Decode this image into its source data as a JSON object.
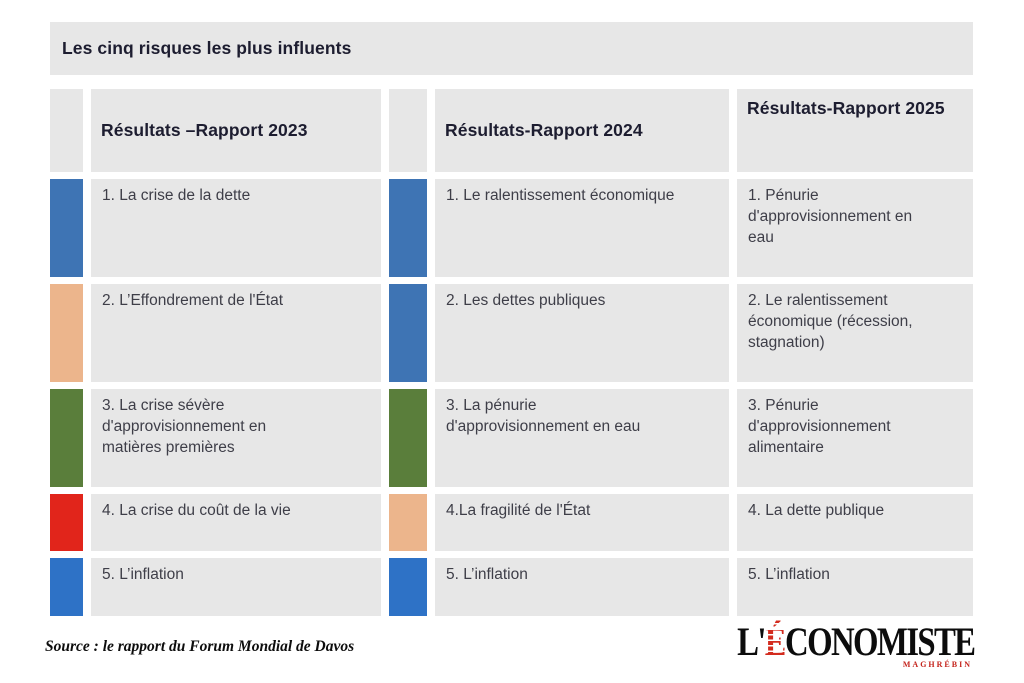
{
  "title": "Les cinq risques les plus influents",
  "colors": {
    "blue": "#3E74B4",
    "bright_blue": "#2E72C6",
    "tan": "#ECB58C",
    "green": "#5A7E3B",
    "red": "#E1251B",
    "cell_bg": "#E7E7E7"
  },
  "chart_data": {
    "type": "table",
    "title": "Les cinq risques les plus influents",
    "columns": [
      {
        "header": "Résultats –Rapport 2023",
        "has_swatches": true,
        "items": [
          {
            "text": "1. La crise de la dette",
            "color": "blue"
          },
          {
            "text": "2. L’Effondrement de l'État",
            "color": "tan"
          },
          {
            "text": "3. La crise sévère\nd'approvisionnement en\nmatières premières",
            "color": "green"
          },
          {
            "text": "4. La crise du coût de la vie",
            "color": "red"
          },
          {
            "text": "5. L’inflation",
            "color": "bright_blue"
          }
        ]
      },
      {
        "header": "Résultats-Rapport 2024",
        "has_swatches": true,
        "items": [
          {
            "text": "1. Le ralentissement économique",
            "color": "blue"
          },
          {
            "text": "2. Les dettes publiques",
            "color": "blue"
          },
          {
            "text": "3. La pénurie\nd'approvisionnement en eau",
            "color": "green"
          },
          {
            "text": "4.La fragilité de l'État",
            "color": "tan"
          },
          {
            "text": "5. L’inflation",
            "color": "bright_blue"
          }
        ]
      },
      {
        "header": "Résultats-Rapport 2025",
        "has_swatches": false,
        "items": [
          {
            "text": "1. Pénurie\nd'approvisionnement en\neau"
          },
          {
            "text": "2. Le ralentissement\néconomique (récession,\nstagnation)"
          },
          {
            "text": "3. Pénurie\nd'approvisionnement\nalimentaire"
          },
          {
            "text": "4. La dette publique"
          },
          {
            "text": "5. L’inflation"
          }
        ]
      }
    ]
  },
  "footer": {
    "source": "Source : le rapport du Forum Mondial de Davos"
  },
  "logo": {
    "prefix": "L'",
    "accent": "É",
    "rest": "CONOMISTE",
    "tagline": "MAGHRÉBIN"
  }
}
